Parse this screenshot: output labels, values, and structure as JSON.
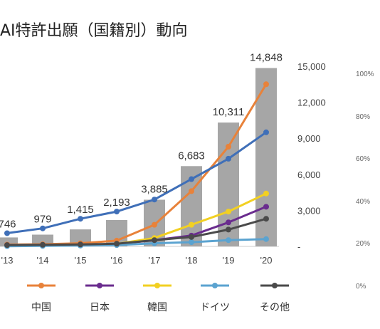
{
  "chart_data": {
    "type": "bar",
    "title": "AI特許出願（国籍別）動向",
    "categories": [
      "'13",
      "'14",
      "'15",
      "'16",
      "'17",
      "'18",
      "'19",
      "'20"
    ],
    "bar_series": {
      "values": [
        746,
        979,
        1415,
        2193,
        3885,
        6683,
        10311,
        14848
      ],
      "labels": [
        "746",
        "979",
        "1,415",
        "2,193",
        "3,885",
        "6,683",
        "10,311",
        "14,848"
      ],
      "color": "#a6a6a6"
    },
    "y_left": {
      "ticks": [
        0,
        3000,
        6000,
        9000,
        12000,
        15000
      ],
      "tick_labels": [
        "-",
        "3,000",
        "6,000",
        "9,000",
        "12,000",
        "15,000"
      ],
      "ylim": [
        0,
        15000
      ]
    },
    "y_right": {
      "tick_labels": [
        "0%",
        "20%",
        "40%",
        "60%",
        "80%",
        "100%"
      ],
      "ylim": [
        0,
        100
      ]
    },
    "line_series": [
      {
        "name": "中国",
        "color": "#e8823a",
        "values": [
          150,
          180,
          260,
          480,
          1800,
          4600,
          8300,
          13500
        ]
      },
      {
        "name": "日本",
        "color": "#6a2c8e",
        "values": [
          100,
          110,
          140,
          200,
          520,
          900,
          2000,
          3300
        ]
      },
      {
        "name": "韓国",
        "color": "#f2d022",
        "values": [
          60,
          90,
          130,
          210,
          700,
          1800,
          2900,
          4400
        ]
      },
      {
        "name": "ドイツ",
        "color": "#5ba3d0",
        "values": [
          20,
          40,
          70,
          110,
          260,
          350,
          520,
          610
        ]
      },
      {
        "name": "その他",
        "color": "#4a4a4a",
        "values": [
          110,
          130,
          160,
          220,
          520,
          780,
          1400,
          2300
        ]
      },
      {
        "name": "",
        "color": "#3f6fb8",
        "values": [
          1100,
          1500,
          2300,
          2900,
          3900,
          5600,
          7300,
          9500
        ]
      }
    ],
    "legend": {
      "position": "bottom"
    },
    "grid": false
  }
}
